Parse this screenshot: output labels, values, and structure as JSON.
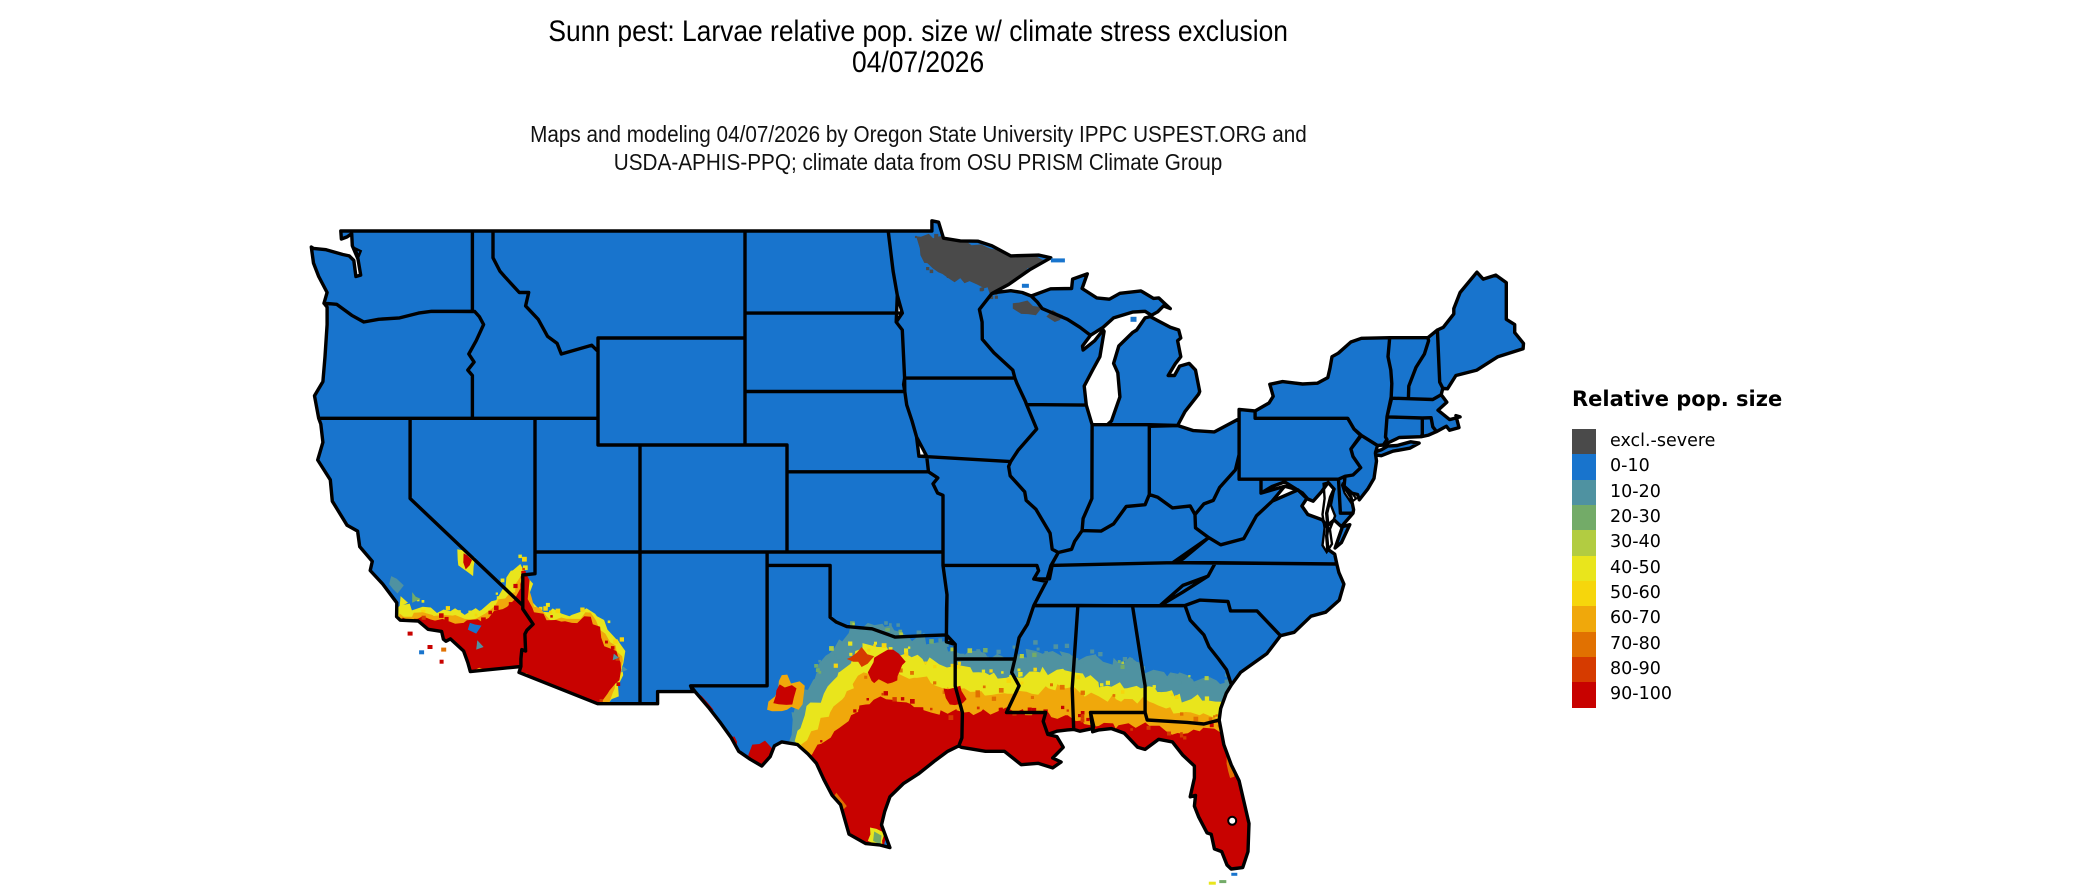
{
  "title": {
    "line1": "Sunn pest: Larvae relative pop. size w/ climate stress exclusion",
    "line2": "04/07/2026"
  },
  "subtitle": {
    "line1": "Maps and modeling 04/07/2026 by Oregon State University IPPC USPEST.ORG and",
    "line2": "USDA-APHIS-PPQ; climate data from OSU PRISM Climate Group"
  },
  "legend": {
    "title": "Relative pop. size",
    "items": [
      {
        "label": "excl.-severe",
        "color": "#4a4a4a"
      },
      {
        "label": "0-10",
        "color": "#1874cd"
      },
      {
        "label": "10-20",
        "color": "#4f92a1"
      },
      {
        "label": "20-30",
        "color": "#73ab68"
      },
      {
        "label": "30-40",
        "color": "#b2cc41"
      },
      {
        "label": "40-50",
        "color": "#e9e51c"
      },
      {
        "label": "50-60",
        "color": "#f6d60c"
      },
      {
        "label": "60-70",
        "color": "#f0a80b"
      },
      {
        "label": "70-80",
        "color": "#e17101"
      },
      {
        "label": "80-90",
        "color": "#d63b00"
      },
      {
        "label": "90-100",
        "color": "#c80200"
      }
    ]
  },
  "map": {
    "type": "choropleth-raster",
    "area": "conterminous United States",
    "state_border_color": "#000000",
    "water_color": "#ffffff",
    "base_category": "0-10",
    "regions": [
      {
        "name": "conus-base",
        "category": "0-10"
      },
      {
        "name": "northern-minnesota",
        "category": "excl.-severe"
      },
      {
        "name": "northern-wisconsin-patches",
        "category": "excl.-severe"
      },
      {
        "name": "south-central-and-southern-texas",
        "category": "90-100"
      },
      {
        "name": "texas-gulf-coast",
        "category": "90-100"
      },
      {
        "name": "southern-louisiana",
        "category": "90-100"
      },
      {
        "name": "mississippi-alabama-coastal-strip",
        "category": "80-100"
      },
      {
        "name": "florida-peninsula",
        "category": "90-100"
      },
      {
        "name": "south-georgia-band",
        "category": "60-80"
      },
      {
        "name": "gulf-coastal-plain-band",
        "category": "40-60"
      },
      {
        "name": "north-texas-red-river-band",
        "category": "10-20"
      },
      {
        "name": "southern-arizona-desert",
        "category": "90-100"
      },
      {
        "name": "southern-california-coast-and-low-desert",
        "category": "90-100"
      },
      {
        "name": "mojave-sonoran-fringe",
        "category": "40-70"
      },
      {
        "name": "big-bend-texas",
        "category": "90-100"
      },
      {
        "name": "el-paso-rio-grande",
        "category": "90-100"
      },
      {
        "name": "permian-basin-texas",
        "category": "80-100"
      },
      {
        "name": "death-valley-california",
        "category": "50-100"
      }
    ]
  }
}
